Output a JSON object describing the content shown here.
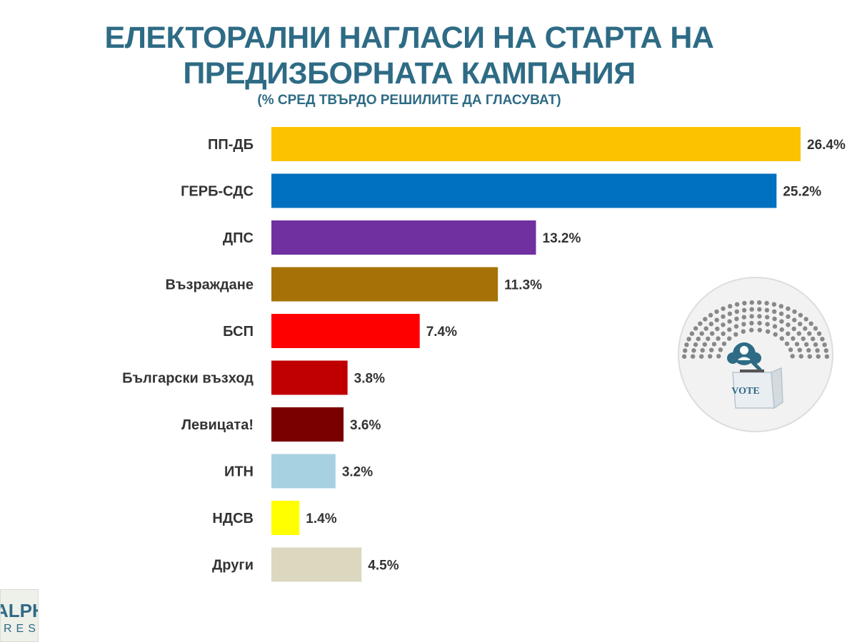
{
  "header": {
    "title": "ЕЛЕКТОРАЛНИ НАГЛАСИ НА СТАРТА НА ПРЕДИЗБОРНАТА КАМПАНИЯ",
    "subtitle": "(% СРЕД ТВЪРДО РЕШИЛИТЕ ДА ГЛАСУВАТ)"
  },
  "chart_data": {
    "type": "bar",
    "orientation": "horizontal",
    "categories": [
      "ПП-ДБ",
      "ГЕРБ-СДС",
      "ДПС",
      "Възраждане",
      "БСП",
      "Български възход",
      "Левицата!",
      "ИТН",
      "НДСВ",
      "Други"
    ],
    "values": [
      26.4,
      25.2,
      13.2,
      11.3,
      7.4,
      3.8,
      3.6,
      3.2,
      1.4,
      4.5
    ],
    "value_labels": [
      "26.4%",
      "25.2%",
      "13.2%",
      "11.3%",
      "7.4%",
      "3.8%",
      "3.6%",
      "3.2%",
      "1.4%",
      "4.5%"
    ],
    "colors": [
      "#fcc200",
      "#0070c0",
      "#7030a0",
      "#a67208",
      "#ff0000",
      "#c00000",
      "#7a0000",
      "#a7d1e0",
      "#ffff00",
      "#dcd8c0"
    ],
    "xlim": [
      0,
      26.4
    ],
    "grid": false,
    "legend": "none"
  },
  "badge": {
    "text": "VOTE",
    "icon": "parliament-vote-icon"
  },
  "logo": {
    "main": "ALPHA",
    "sub": "RESEARCH"
  }
}
